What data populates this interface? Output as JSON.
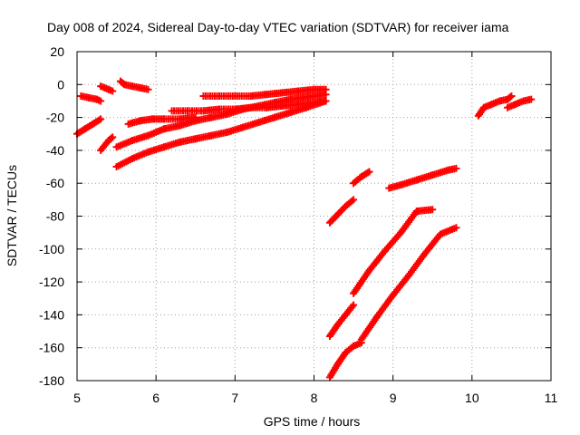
{
  "chart_data": {
    "type": "scatter",
    "title": "Day 008 of 2024, Sidereal Day-to-day VTEC variation (SDTVAR) for receiver iama",
    "xlabel": "GPS time / hours",
    "ylabel": "SDTVAR / TECUs",
    "xlim": [
      5,
      11
    ],
    "ylim": [
      -180,
      20
    ],
    "xticks": [
      5,
      6,
      7,
      8,
      9,
      10,
      11
    ],
    "yticks": [
      20,
      0,
      -20,
      -40,
      -60,
      -80,
      -100,
      -120,
      -140,
      -160,
      -180
    ],
    "grid": true,
    "marker": "plus",
    "color": "#ff0000",
    "series": [
      {
        "x": [
          5.05,
          5.15,
          5.25,
          5.3
        ],
        "y": [
          -7,
          -8,
          -9,
          -10
        ]
      },
      {
        "x": [
          5.0,
          5.1,
          5.2,
          5.3
        ],
        "y": [
          -30,
          -27,
          -24,
          -21
        ]
      },
      {
        "x": [
          5.3,
          5.35,
          5.4,
          5.45
        ],
        "y": [
          -40,
          -37,
          -34,
          -32
        ]
      },
      {
        "x": [
          5.3,
          5.35,
          5.4,
          5.45
        ],
        "y": [
          -1,
          -2,
          -3,
          -4
        ]
      },
      {
        "x": [
          5.55,
          5.6,
          5.7,
          5.8,
          5.9
        ],
        "y": [
          2,
          0,
          -1,
          -2,
          -3
        ]
      },
      {
        "x": [
          5.5,
          5.7,
          5.9,
          6.1,
          6.3,
          6.5,
          6.7,
          6.9,
          7.1,
          7.3,
          7.5,
          7.7,
          7.85,
          8.0,
          8.15
        ],
        "y": [
          -38,
          -34,
          -31,
          -27,
          -25,
          -22,
          -20,
          -18,
          -15,
          -13,
          -11,
          -9,
          -8,
          -7,
          -6
        ]
      },
      {
        "x": [
          5.5,
          5.7,
          5.9,
          6.1,
          6.3,
          6.5,
          6.7,
          6.9,
          7.1,
          7.3,
          7.5,
          7.7,
          7.9,
          8.15
        ],
        "y": [
          -50,
          -45,
          -41,
          -38,
          -35,
          -33,
          -31,
          -29,
          -26,
          -23,
          -20,
          -17,
          -14,
          -10
        ]
      },
      {
        "x": [
          5.65,
          5.8,
          5.95,
          6.1,
          6.3,
          6.5
        ],
        "y": [
          -24,
          -22,
          -21,
          -21,
          -21,
          -20
        ]
      },
      {
        "x": [
          6.2,
          6.4,
          6.6,
          6.8,
          7.0,
          7.2,
          7.4,
          7.6,
          7.8,
          8.0,
          8.15
        ],
        "y": [
          -16,
          -16,
          -16,
          -15,
          -15,
          -14,
          -14,
          -13,
          -12,
          -11,
          -10
        ]
      },
      {
        "x": [
          6.6,
          6.8,
          7.0,
          7.2,
          7.4,
          7.6,
          7.8,
          8.0,
          8.15
        ],
        "y": [
          -7,
          -7,
          -7,
          -7,
          -6,
          -5,
          -4,
          -3,
          -3
        ]
      },
      {
        "x": [
          8.2,
          8.3,
          8.4,
          8.5
        ],
        "y": [
          -84,
          -79,
          -74,
          -70
        ]
      },
      {
        "x": [
          8.5,
          8.6,
          8.7
        ],
        "y": [
          -60,
          -56,
          -53
        ]
      },
      {
        "x": [
          8.95,
          9.1,
          9.3,
          9.5,
          9.7,
          9.8
        ],
        "y": [
          -63,
          -61,
          -58,
          -55,
          -52,
          -51
        ]
      },
      {
        "x": [
          8.2,
          8.3,
          8.4,
          8.5
        ],
        "y": [
          -153,
          -146,
          -140,
          -134
        ]
      },
      {
        "x": [
          8.5,
          8.7,
          8.9,
          9.1,
          9.3,
          9.5
        ],
        "y": [
          -127,
          -113,
          -101,
          -90,
          -77,
          -76
        ]
      },
      {
        "x": [
          8.2,
          8.3,
          8.4,
          8.5,
          8.6
        ],
        "y": [
          -178,
          -170,
          -163,
          -159,
          -157
        ]
      },
      {
        "x": [
          8.6,
          8.8,
          9.0,
          9.2,
          9.4,
          9.6,
          9.8
        ],
        "y": [
          -155,
          -141,
          -128,
          -116,
          -103,
          -91,
          -87
        ]
      },
      {
        "x": [
          10.08,
          10.15,
          10.25,
          10.35,
          10.45,
          10.5
        ],
        "y": [
          -19,
          -14,
          -12,
          -10,
          -9,
          -7
        ]
      },
      {
        "x": [
          10.45,
          10.55,
          10.65,
          10.75
        ],
        "y": [
          -14,
          -12,
          -10,
          -9
        ]
      }
    ]
  }
}
